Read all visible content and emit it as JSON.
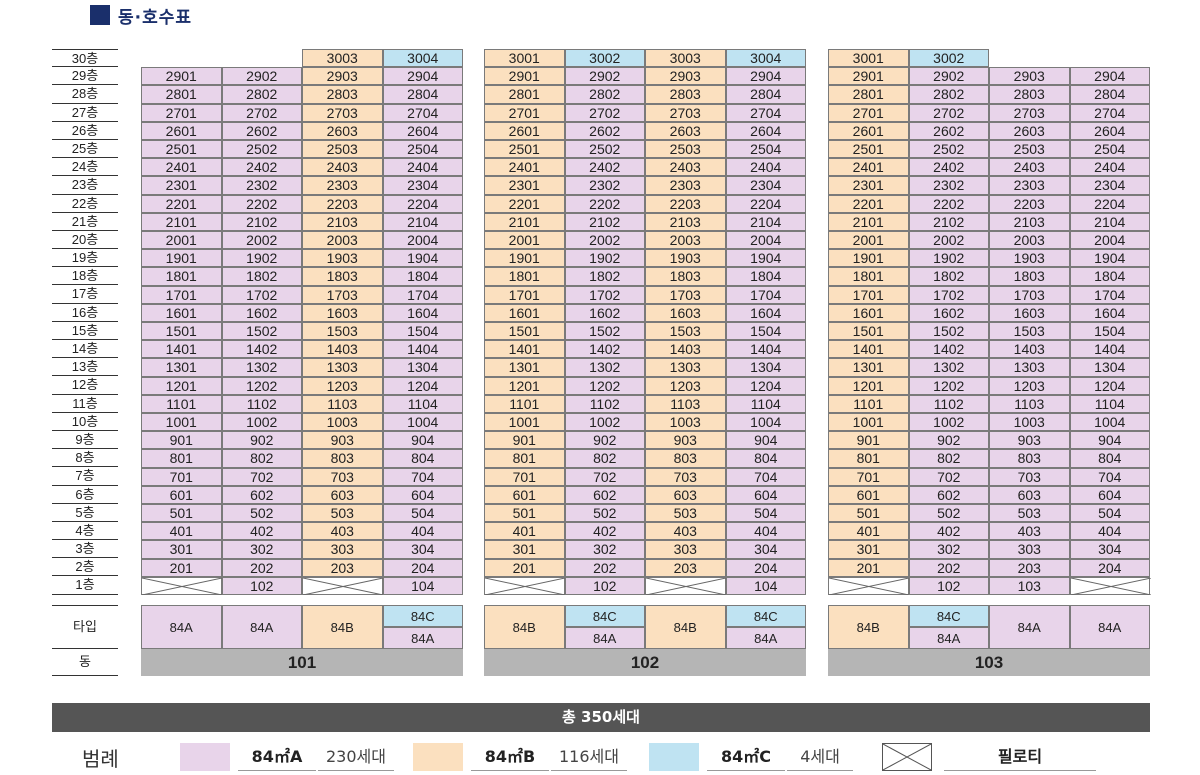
{
  "title": "동·호수표",
  "floors": [
    "30층",
    "29층",
    "28층",
    "27층",
    "26층",
    "25층",
    "24층",
    "23층",
    "22층",
    "21층",
    "20층",
    "19층",
    "18층",
    "17층",
    "16층",
    "15층",
    "14층",
    "13층",
    "12층",
    "11층",
    "10층",
    "9층",
    "8층",
    "7층",
    "6층",
    "5층",
    "4층",
    "3층",
    "2층",
    "1층"
  ],
  "row_labels": {
    "type": "타입",
    "dong": "동"
  },
  "buildings": [
    {
      "name": "101",
      "left": 141,
      "columns": [
        {
          "line": "01",
          "color": "ta",
          "top_floor": 29,
          "piloti_first": true,
          "types": [
            {
              "label": "84A",
              "color": "ta"
            }
          ]
        },
        {
          "line": "02",
          "color": "ta",
          "top_floor": 29,
          "piloti_first": false,
          "types": [
            {
              "label": "84A",
              "color": "ta"
            }
          ]
        },
        {
          "line": "03",
          "color": "tb",
          "top_floor": 30,
          "piloti_first": true,
          "types": [
            {
              "label": "84B",
              "color": "tb"
            }
          ]
        },
        {
          "line": "04",
          "color": "ta",
          "top_color": "tc",
          "top_floor": 30,
          "piloti_first": false,
          "types": [
            {
              "label": "84C",
              "color": "tc"
            },
            {
              "label": "84A",
              "color": "ta"
            }
          ]
        }
      ]
    },
    {
      "name": "102",
      "left": 484,
      "columns": [
        {
          "line": "01",
          "color": "tb",
          "top_floor": 30,
          "piloti_first": true,
          "types": [
            {
              "label": "84B",
              "color": "tb"
            }
          ]
        },
        {
          "line": "02",
          "color": "ta",
          "top_color": "tc",
          "top_floor": 30,
          "piloti_first": false,
          "types": [
            {
              "label": "84C",
              "color": "tc"
            },
            {
              "label": "84A",
              "color": "ta"
            }
          ]
        },
        {
          "line": "03",
          "color": "tb",
          "top_floor": 30,
          "piloti_first": true,
          "types": [
            {
              "label": "84B",
              "color": "tb"
            }
          ]
        },
        {
          "line": "04",
          "color": "ta",
          "top_color": "tc",
          "top_floor": 30,
          "piloti_first": false,
          "types": [
            {
              "label": "84C",
              "color": "tc"
            },
            {
              "label": "84A",
              "color": "ta"
            }
          ]
        }
      ]
    },
    {
      "name": "103",
      "left": 828,
      "columns": [
        {
          "line": "01",
          "color": "tb",
          "top_floor": 30,
          "piloti_first": true,
          "types": [
            {
              "label": "84B",
              "color": "tb"
            }
          ]
        },
        {
          "line": "02",
          "color": "ta",
          "top_color": "tc",
          "top_floor": 30,
          "piloti_first": false,
          "first_label": "102",
          "types": [
            {
              "label": "84C",
              "color": "tc"
            },
            {
              "label": "84A",
              "color": "ta"
            }
          ]
        },
        {
          "line": "03",
          "color": "ta",
          "top_floor": 29,
          "piloti_first": false,
          "first_label": "103",
          "types": [
            {
              "label": "84A",
              "color": "ta"
            }
          ]
        },
        {
          "line": "04",
          "color": "ta",
          "top_floor": 29,
          "piloti_first": true,
          "types": [
            {
              "label": "84A",
              "color": "ta"
            }
          ]
        }
      ]
    }
  ],
  "total": "총 350세대",
  "legend": {
    "title": "범례",
    "items": [
      {
        "color": "#e8d4ea",
        "size": "84㎡A",
        "count": "230세대"
      },
      {
        "color": "#fbe0bf",
        "size": "84㎡B",
        "count": "116세대"
      },
      {
        "color": "#bfe3f2",
        "size": "84㎡C",
        "count": "4세대"
      }
    ],
    "piloti": "필로티"
  },
  "colors": {
    "ta": "#e8d4ea",
    "tb": "#fbe0bf",
    "tc": "#bfe3f2",
    "title": "#1a2f6b",
    "dong_bar": "#b5b5b5",
    "total_bar": "#555555"
  }
}
